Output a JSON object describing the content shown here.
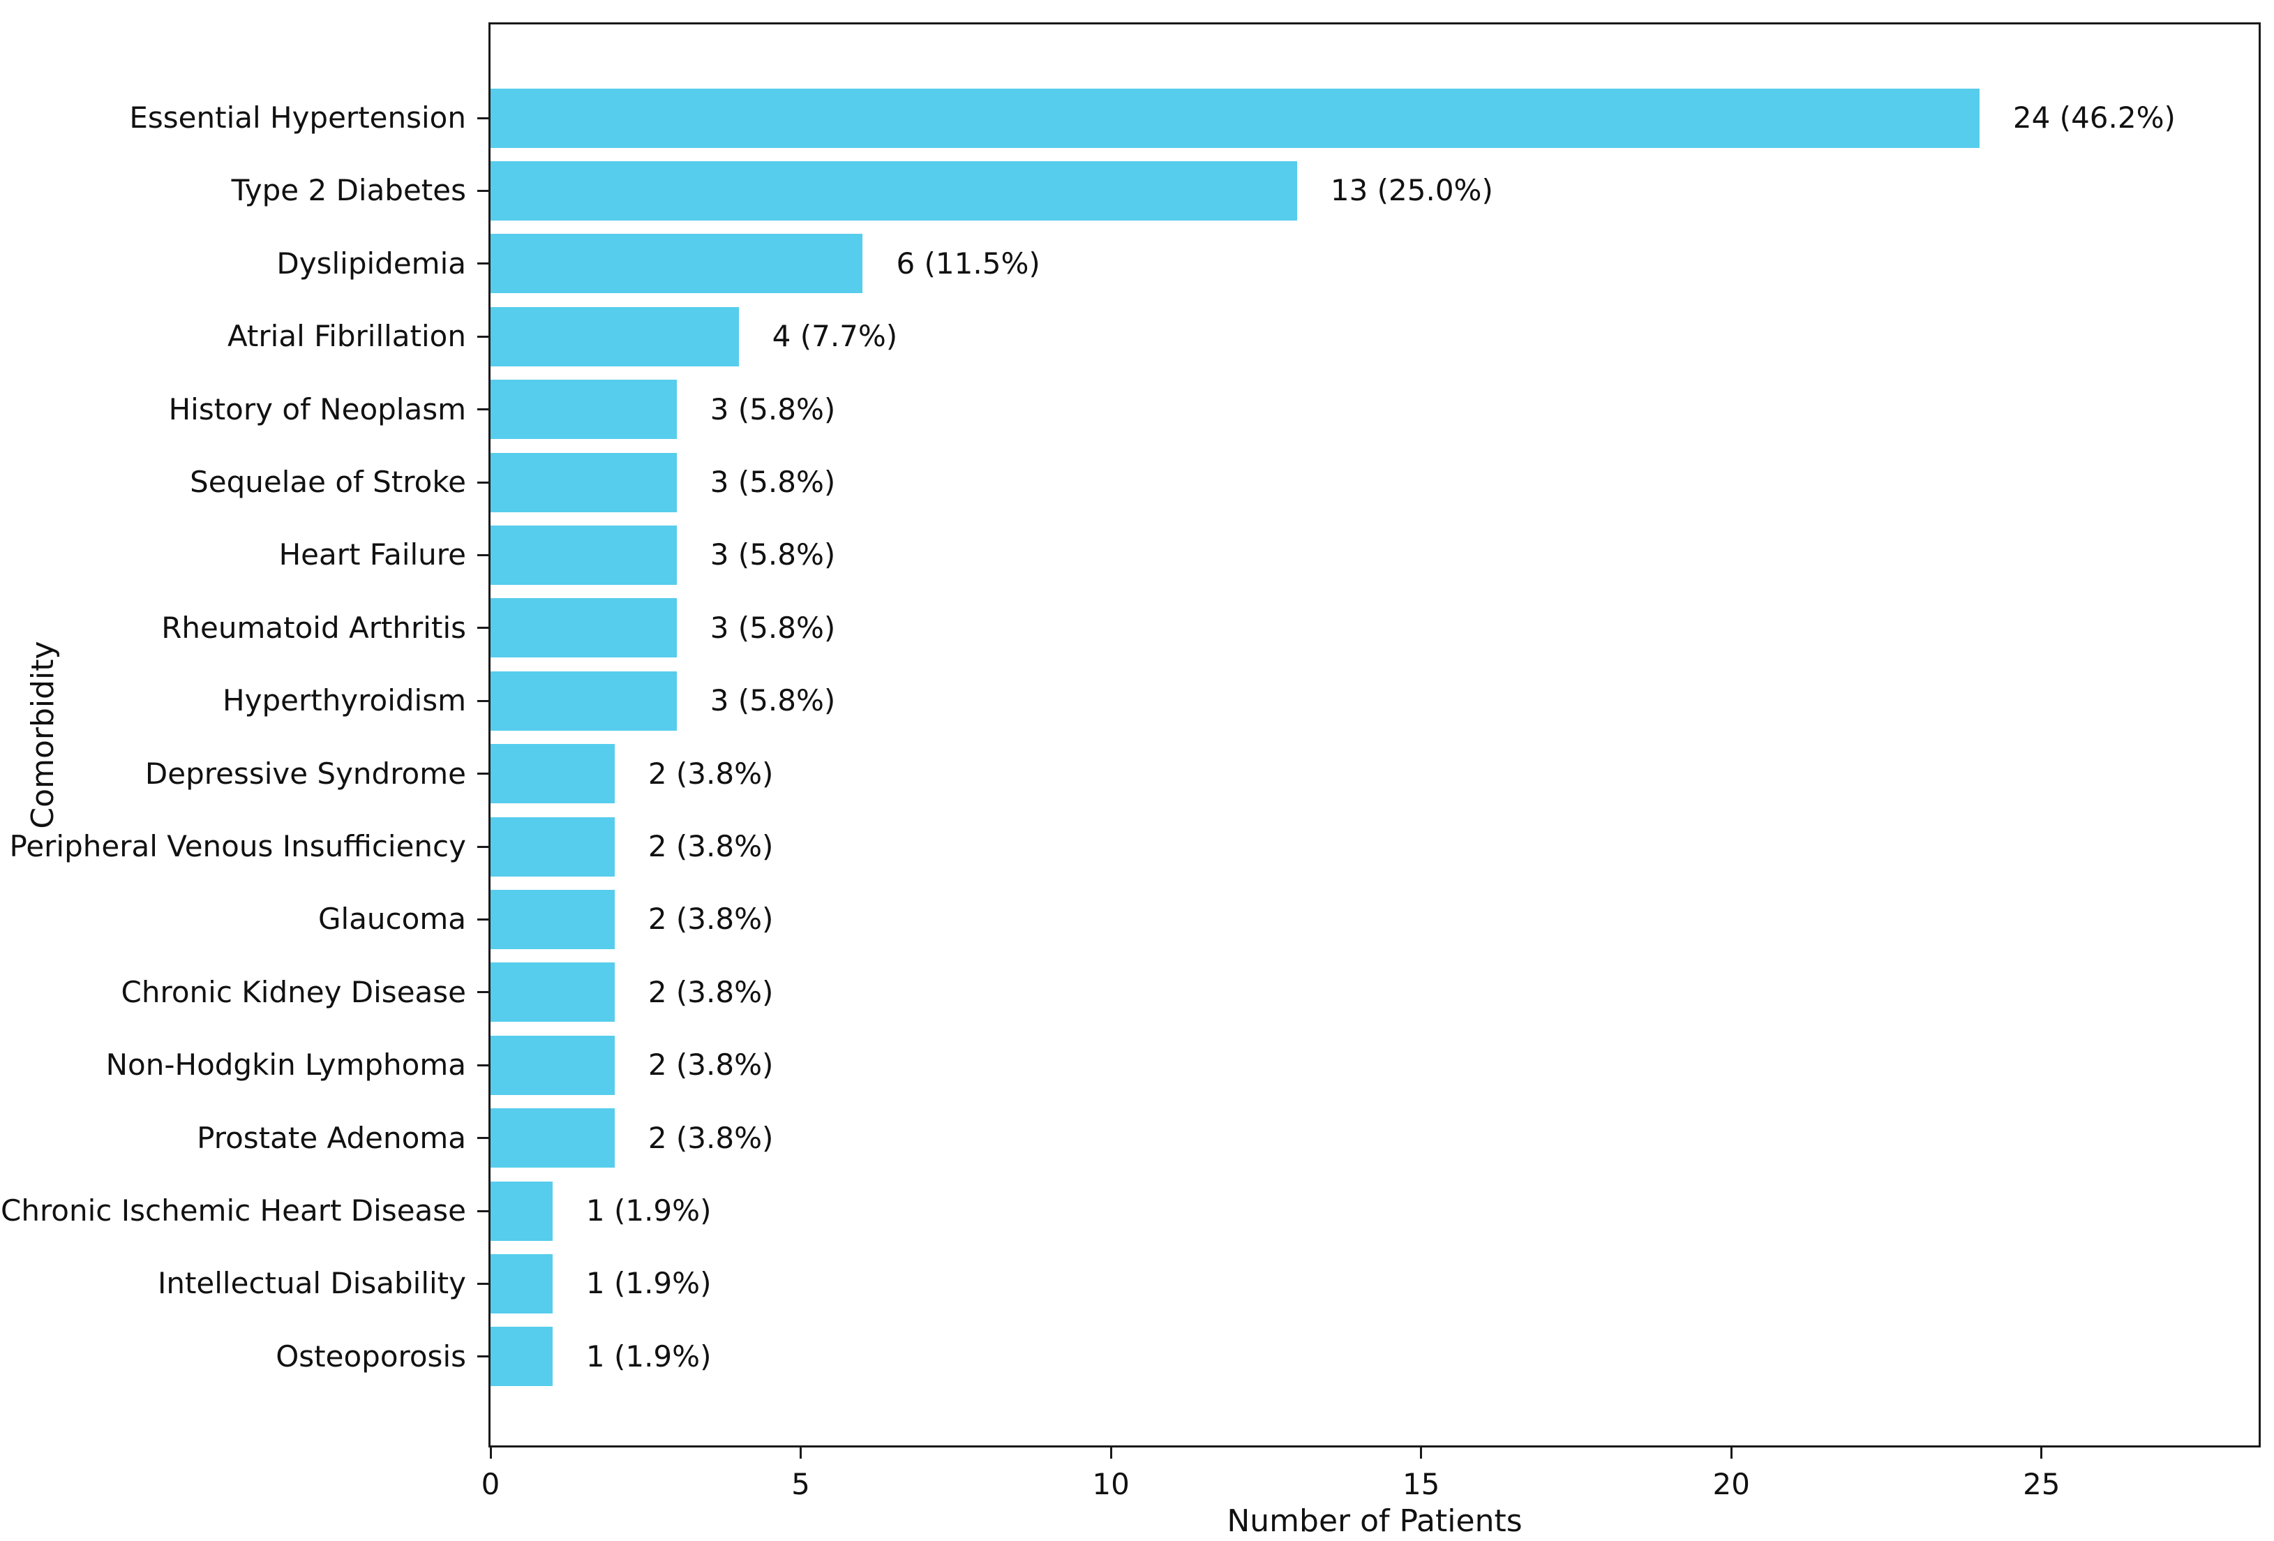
{
  "chart_data": {
    "type": "bar",
    "orientation": "horizontal",
    "title": "",
    "xlabel": "Number of Patients",
    "ylabel": "Comorbidity",
    "xlim": [
      0,
      28.5
    ],
    "xticks": [
      0,
      5,
      10,
      15,
      20,
      25
    ],
    "grid": false,
    "legend": false,
    "bar_color": "#56cdec",
    "spine_color": "#1a1a1a",
    "text_color": "#111111",
    "categories": [
      "Essential Hypertension",
      "Type 2 Diabetes",
      "Dyslipidemia",
      "Atrial Fibrillation",
      "History of Neoplasm",
      "Sequelae of Stroke",
      "Heart Failure",
      "Rheumatoid Arthritis",
      "Hyperthyroidism",
      "Depressive Syndrome",
      "Peripheral Venous Insufficiency",
      "Glaucoma",
      "Chronic Kidney Disease",
      "Non-Hodgkin Lymphoma",
      "Prostate Adenoma",
      "Chronic Ischemic Heart Disease",
      "Intellectual Disability",
      "Osteoporosis"
    ],
    "values": [
      24,
      13,
      6,
      4,
      3,
      3,
      3,
      3,
      3,
      2,
      2,
      2,
      2,
      2,
      2,
      1,
      1,
      1
    ],
    "bar_labels": [
      "24 (46.2%)",
      "13 (25.0%)",
      "6 (11.5%)",
      "4 (7.7%)",
      "3 (5.8%)",
      "3 (5.8%)",
      "3 (5.8%)",
      "3 (5.8%)",
      "3 (5.8%)",
      "2 (3.8%)",
      "2 (3.8%)",
      "2 (3.8%)",
      "2 (3.8%)",
      "2 (3.8%)",
      "2 (3.8%)",
      "1 (1.9%)",
      "1 (1.9%)",
      "1 (1.9%)"
    ]
  }
}
